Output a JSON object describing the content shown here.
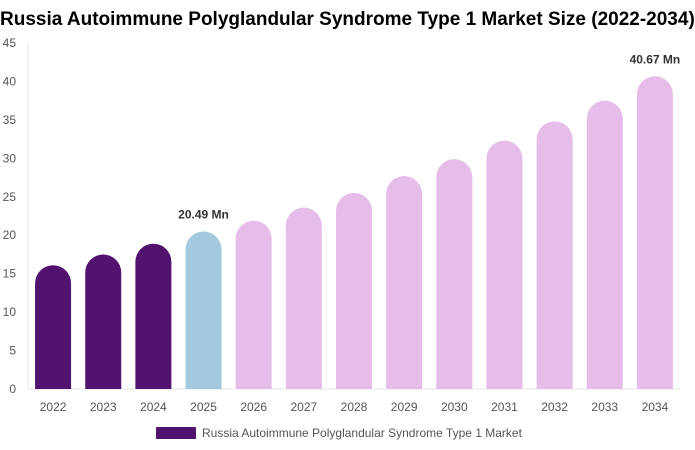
{
  "chart_data": {
    "type": "bar",
    "title": "Russia Autoimmune Polyglandular Syndrome Type 1 Market Size (2022-2034)",
    "categories": [
      "2022",
      "2023",
      "2024",
      "2025",
      "2026",
      "2027",
      "2028",
      "2029",
      "2030",
      "2031",
      "2032",
      "2033",
      "2034"
    ],
    "series": [
      {
        "name": "Russia Autoimmune Polyglandular Syndrome Type 1 Market",
        "values": [
          16.1,
          17.5,
          18.9,
          20.49,
          21.9,
          23.6,
          25.5,
          27.7,
          29.9,
          32.3,
          34.8,
          37.5,
          40.67
        ]
      }
    ],
    "bar_colors": [
      "#52136f",
      "#52136f",
      "#52136f",
      "#a3c9de",
      "#e6bde9",
      "#e6bde9",
      "#e6bde9",
      "#e6bde9",
      "#e6bde9",
      "#e6bde9",
      "#e6bde9",
      "#e6bde9",
      "#e6bde9"
    ],
    "data_labels": [
      {
        "category": "2025",
        "text": "20.49 Mn"
      },
      {
        "category": "2034",
        "text": "40.67 Mn"
      }
    ],
    "ylim": [
      0,
      45
    ],
    "yticks": [
      0,
      5,
      10,
      15,
      20,
      25,
      30,
      35,
      40,
      45
    ],
    "grid": false,
    "legend_position": "bottom",
    "legend_color": "#52136f"
  }
}
